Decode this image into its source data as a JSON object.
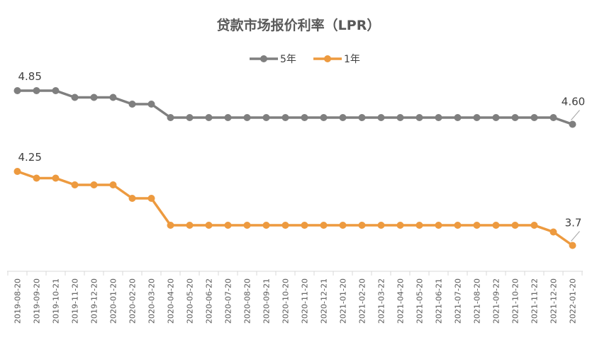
{
  "chart_data": {
    "type": "line",
    "title": "贷款市场报价利率（LPR）",
    "categories": [
      "2019-08-20",
      "2019-09-20",
      "2019-10-21",
      "2019-11-20",
      "2019-12-20",
      "2020-01-20",
      "2020-02-20",
      "2020-03-20",
      "2020-04-20",
      "2020-05-20",
      "2020-06-22",
      "2020-07-20",
      "2020-08-20",
      "2020-09-21",
      "2020-10-20",
      "2020-11-20",
      "2020-12-21",
      "2021-01-20",
      "2021-02-20",
      "2021-03-22",
      "2021-04-20",
      "2021-05-20",
      "2021-06-21",
      "2021-07-20",
      "2021-08-20",
      "2021-09-22",
      "2021-10-20",
      "2021-11-22",
      "2021-12-20",
      "2022-01-20"
    ],
    "series": [
      {
        "name": "5年",
        "color": "#7f7f7f",
        "values": [
          4.85,
          4.85,
          4.85,
          4.8,
          4.8,
          4.8,
          4.75,
          4.75,
          4.65,
          4.65,
          4.65,
          4.65,
          4.65,
          4.65,
          4.65,
          4.65,
          4.65,
          4.65,
          4.65,
          4.65,
          4.65,
          4.65,
          4.65,
          4.65,
          4.65,
          4.65,
          4.65,
          4.65,
          4.65,
          4.6
        ]
      },
      {
        "name": "1年",
        "color": "#ed9a3f",
        "values": [
          4.25,
          4.2,
          4.2,
          4.15,
          4.15,
          4.15,
          4.05,
          4.05,
          3.85,
          3.85,
          3.85,
          3.85,
          3.85,
          3.85,
          3.85,
          3.85,
          3.85,
          3.85,
          3.85,
          3.85,
          3.85,
          3.85,
          3.85,
          3.85,
          3.85,
          3.85,
          3.85,
          3.85,
          3.8,
          3.7
        ]
      }
    ],
    "data_labels": [
      {
        "series": 0,
        "index": 0,
        "text": "4.85"
      },
      {
        "series": 0,
        "index": 29,
        "text": "4.60"
      },
      {
        "series": 1,
        "index": 0,
        "text": "4.25"
      },
      {
        "series": 1,
        "index": 29,
        "text": "3.7"
      }
    ],
    "legend_position": "top-center",
    "grid": false
  }
}
